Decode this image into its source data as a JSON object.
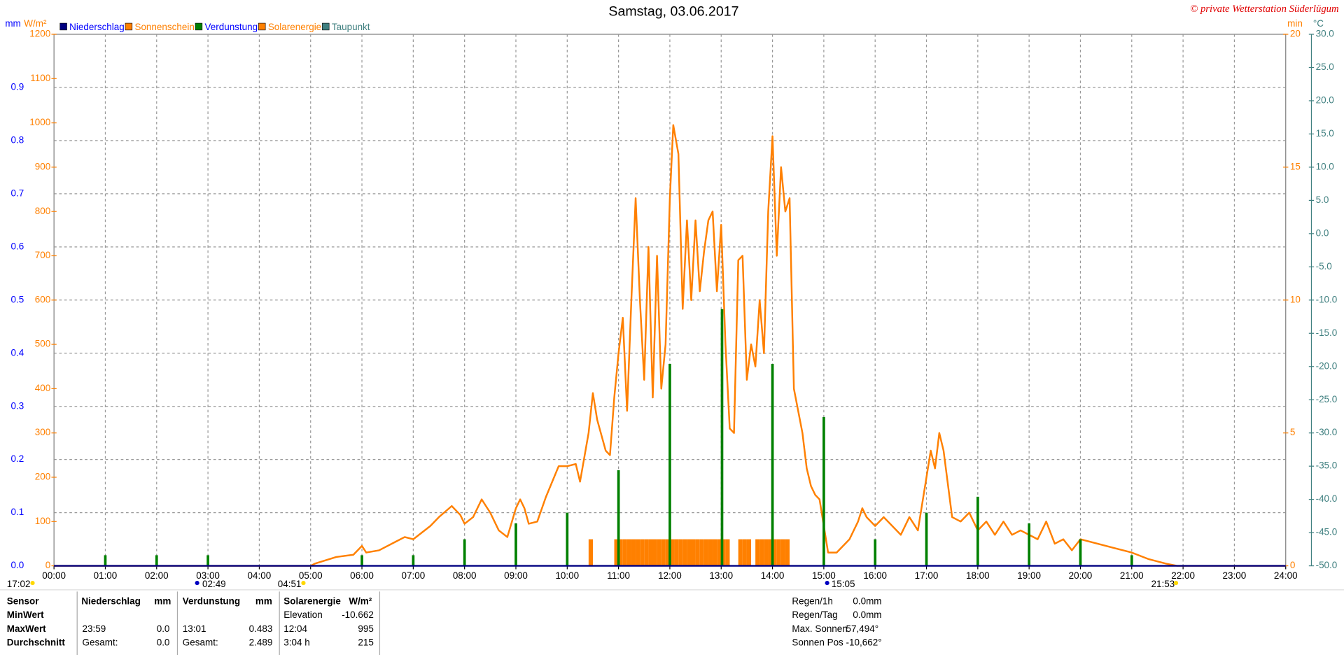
{
  "chart_data": {
    "type": "line",
    "title": "Samstag, 03.06.2017",
    "credit": "© private Wetterstation Süderlügum",
    "xlim": [
      "00:00",
      "24:00"
    ],
    "xticks": [
      "00:00",
      "01:00",
      "02:00",
      "03:00",
      "04:00",
      "05:00",
      "06:00",
      "07:00",
      "08:00",
      "09:00",
      "10:00",
      "11:00",
      "12:00",
      "13:00",
      "14:00",
      "15:00",
      "16:00",
      "17:00",
      "18:00",
      "19:00",
      "20:00",
      "21:00",
      "22:00",
      "23:00",
      "24:00"
    ],
    "grid": true,
    "axes": [
      {
        "unit": "mm",
        "color": "#0000ff",
        "lim": [
          0,
          1
        ],
        "ticks": [
          {
            "value": 0,
            "label": "0.0"
          },
          0.1,
          0.2,
          0.3,
          0.4,
          0.5,
          0.6,
          0.7,
          0.8,
          0.9
        ]
      },
      {
        "unit": "W/m²",
        "color": "#ff8000",
        "lim": [
          0,
          1200
        ],
        "ticks": [
          0,
          100,
          200,
          300,
          400,
          500,
          600,
          700,
          800,
          900,
          1000,
          1100,
          1200
        ]
      },
      {
        "unit": "min",
        "color": "#ff8000",
        "lim": [
          0,
          20
        ],
        "ticks": [
          0,
          5,
          10,
          15,
          20
        ]
      },
      {
        "unit": "°C",
        "color": "#408080",
        "lim": [
          -50,
          30
        ],
        "ticks": [
          {
            "value": -50,
            "label": "-50.0"
          },
          {
            "value": -45,
            "label": "-45.0"
          },
          {
            "value": -40,
            "label": "-40.0"
          },
          {
            "value": -35,
            "label": "-35.0"
          },
          {
            "value": -30,
            "label": "-30.0"
          },
          {
            "value": -25,
            "label": "-25.0"
          },
          {
            "value": -20,
            "label": "-20.0"
          },
          {
            "value": -15,
            "label": "-15.0"
          },
          {
            "value": -10,
            "label": "-10.0"
          },
          {
            "value": -5,
            "label": "-5.0"
          },
          {
            "value": 0,
            "label": "0.0"
          },
          {
            "value": 5,
            "label": "5.0"
          },
          {
            "value": 10,
            "label": "10.0"
          },
          {
            "value": 15,
            "label": "15.0"
          },
          {
            "value": 20,
            "label": "20.0"
          },
          {
            "value": 25,
            "label": "25.0"
          },
          {
            "value": 30,
            "label": "30.0"
          }
        ]
      }
    ],
    "series": [
      {
        "name": "Niederschlag",
        "color": "#000080",
        "axis": 0,
        "type": "line",
        "x": [
          "00:00",
          "24:00"
        ],
        "values": [
          0,
          0
        ]
      },
      {
        "name": "Sonnenschein",
        "color": "#ff8000",
        "axis": 2,
        "type": "bar",
        "x": [
          "10:25",
          "10:55",
          "11:00",
          "11:05",
          "11:10",
          "11:15",
          "11:20",
          "11:25",
          "11:30",
          "11:35",
          "11:40",
          "11:45",
          "11:50",
          "11:55",
          "12:00",
          "12:05",
          "12:10",
          "12:15",
          "12:20",
          "12:25",
          "12:30",
          "12:35",
          "12:40",
          "12:45",
          "12:50",
          "12:55",
          "13:00",
          "13:05",
          "13:20",
          "13:25",
          "13:30",
          "13:40",
          "13:45",
          "13:50",
          "13:55",
          "14:00",
          "14:05",
          "14:10",
          "14:15"
        ],
        "values": [
          1,
          1,
          1,
          1,
          1,
          1,
          1,
          1,
          1,
          1,
          1,
          1,
          1,
          1,
          1,
          1,
          1,
          1,
          1,
          1,
          1,
          1,
          1,
          1,
          1,
          1,
          1,
          1,
          1,
          1,
          1,
          1,
          1,
          1,
          1,
          1,
          1,
          1,
          1
        ]
      },
      {
        "name": "Verdunstung",
        "color": "#008000",
        "axis": 0,
        "type": "spike",
        "x": [
          "01:00",
          "02:00",
          "03:00",
          "06:00",
          "07:00",
          "08:00",
          "09:00",
          "10:00",
          "11:00",
          "12:00",
          "13:01",
          "14:00",
          "15:00",
          "16:00",
          "17:00",
          "18:00",
          "19:00",
          "20:00",
          "21:00"
        ],
        "values": [
          0.02,
          0.02,
          0.02,
          0.02,
          0.02,
          0.05,
          0.08,
          0.1,
          0.18,
          0.38,
          0.483,
          0.38,
          0.28,
          0.05,
          0.1,
          0.13,
          0.08,
          0.05,
          0.02
        ]
      },
      {
        "name": "Solarenergie",
        "color": "#ff8000",
        "axis": 1,
        "type": "line",
        "x": [
          "00:00",
          "05:00",
          "05:05",
          "05:30",
          "05:50",
          "06:00",
          "06:05",
          "06:20",
          "06:40",
          "06:50",
          "07:00",
          "07:10",
          "07:20",
          "07:30",
          "07:45",
          "07:55",
          "08:00",
          "08:10",
          "08:20",
          "08:30",
          "08:40",
          "08:50",
          "09:00",
          "09:05",
          "09:10",
          "09:15",
          "09:25",
          "09:35",
          "09:50",
          "10:00",
          "10:10",
          "10:15",
          "10:25",
          "10:30",
          "10:35",
          "10:45",
          "10:50",
          "10:55",
          "11:00",
          "11:05",
          "11:10",
          "11:15",
          "11:20",
          "11:25",
          "11:30",
          "11:35",
          "11:40",
          "11:45",
          "11:50",
          "11:55",
          "12:00",
          "12:04",
          "12:10",
          "12:15",
          "12:20",
          "12:25",
          "12:30",
          "12:35",
          "12:40",
          "12:45",
          "12:50",
          "12:55",
          "13:00",
          "13:05",
          "13:10",
          "13:15",
          "13:20",
          "13:25",
          "13:30",
          "13:35",
          "13:40",
          "13:45",
          "13:50",
          "13:55",
          "14:00",
          "14:05",
          "14:10",
          "14:15",
          "14:20",
          "14:25",
          "14:35",
          "14:40",
          "14:45",
          "14:50",
          "14:55",
          "15:00",
          "15:05",
          "15:15",
          "15:30",
          "15:40",
          "15:45",
          "15:50",
          "16:00",
          "16:10",
          "16:20",
          "16:30",
          "16:40",
          "16:50",
          "17:00",
          "17:05",
          "17:10",
          "17:15",
          "17:20",
          "17:30",
          "17:40",
          "17:50",
          "18:00",
          "18:10",
          "18:20",
          "18:30",
          "18:40",
          "18:50",
          "19:00",
          "19:10",
          "19:20",
          "19:30",
          "19:40",
          "19:50",
          "20:00",
          "20:20",
          "20:40",
          "21:00",
          "21:20",
          "21:40",
          "21:53",
          "24:00"
        ],
        "values": [
          0,
          0,
          5,
          20,
          25,
          45,
          30,
          35,
          55,
          65,
          60,
          75,
          90,
          110,
          135,
          115,
          95,
          110,
          150,
          120,
          80,
          65,
          130,
          150,
          130,
          95,
          100,
          155,
          225,
          225,
          230,
          190,
          300,
          390,
          330,
          260,
          250,
          380,
          480,
          560,
          350,
          600,
          830,
          600,
          420,
          720,
          380,
          700,
          400,
          500,
          830,
          995,
          930,
          580,
          780,
          600,
          780,
          620,
          710,
          780,
          800,
          620,
          770,
          500,
          310,
          300,
          690,
          700,
          420,
          500,
          450,
          600,
          480,
          800,
          970,
          700,
          900,
          800,
          830,
          400,
          300,
          220,
          180,
          160,
          150,
          90,
          30,
          30,
          60,
          100,
          130,
          110,
          90,
          110,
          90,
          70,
          110,
          80,
          200,
          260,
          220,
          300,
          260,
          110,
          100,
          120,
          80,
          100,
          70,
          100,
          70,
          80,
          70,
          60,
          100,
          50,
          60,
          35,
          60,
          50,
          40,
          30,
          15,
          5,
          0,
          0
        ]
      },
      {
        "name": "Taupunkt",
        "color": "#408080",
        "axis": 3,
        "type": "line",
        "x": [],
        "values": []
      }
    ],
    "sun_events": [
      "17:02",
      "02:49",
      "04:51",
      "15:05",
      "21:53"
    ]
  },
  "table": {
    "header": [
      "Sensor",
      "Niederschlag",
      "mm",
      "Verdunstung",
      "mm",
      "Solarenergie",
      "W/m²"
    ],
    "rows": [
      [
        "MinWert",
        null,
        null,
        null,
        null,
        "Elevation",
        "-10.662"
      ],
      [
        "MaxWert",
        "23:59",
        "0.0",
        "13:01",
        "0.483",
        "12:04",
        "995"
      ],
      [
        "Durchschnitt",
        "Gesamt:",
        "0.0",
        "Gesamt:",
        "2.489",
        "3:04 h",
        "215"
      ]
    ]
  },
  "info": [
    [
      "Regen/1h",
      "0.0mm"
    ],
    [
      "Regen/Tag",
      "0.0mm"
    ],
    [
      "Max. Sonnen",
      "57,494°"
    ],
    [
      "Sonnen Pos",
      "-10,662°"
    ]
  ]
}
